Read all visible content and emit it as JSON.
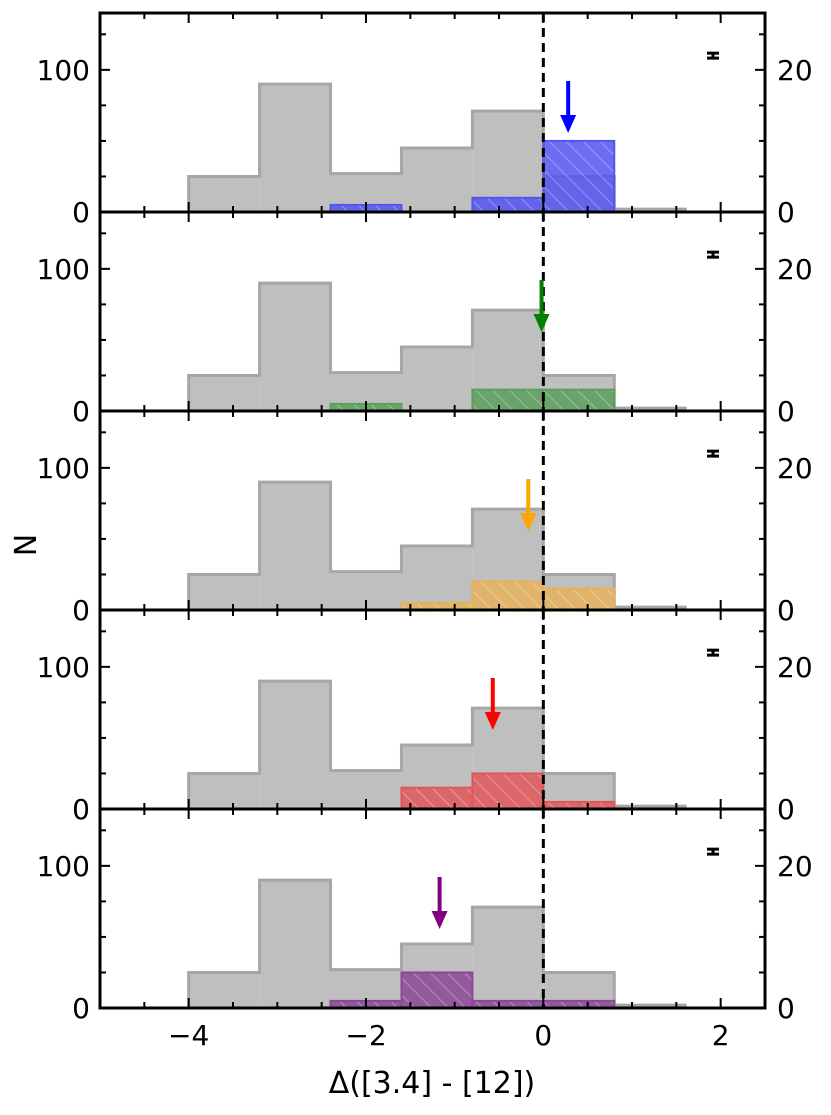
{
  "figure": {
    "xlabel": "Δ([3.4] - [12])",
    "ylabel": "N"
  },
  "chart_data": {
    "type": "histogram-stack",
    "shared_x": {
      "xlabel": "Δ([3.4] - [12])",
      "xlim": [
        -5,
        2.5
      ],
      "major_ticks": [
        -4,
        -2,
        0,
        2
      ],
      "major_tick_labels": [
        "−4",
        "−2",
        "0",
        "2"
      ],
      "minor_step": 0.5
    },
    "ylabel": "N",
    "left_axis": {
      "ylim": [
        0,
        140
      ],
      "ticks": [
        0,
        100
      ],
      "tick_labels": [
        "0",
        "100"
      ]
    },
    "right_axis": {
      "ylim": [
        0,
        28
      ],
      "ticks": [
        0,
        20
      ],
      "tick_labels": [
        "0",
        "20"
      ]
    },
    "reference_line_x": 0,
    "background_histogram": {
      "color": "#bfbfbf",
      "edge_color": "#a6a6a6",
      "bin_edges": [
        -4.0,
        -3.2,
        -2.4,
        -1.6,
        -0.8,
        0.0,
        0.8,
        1.6
      ],
      "counts": [
        25,
        90,
        27,
        45,
        71,
        25,
        2
      ]
    },
    "panels": [
      {
        "color": "#5454f2",
        "arrow_color": "#0000ff",
        "arrow_x": 0.28,
        "bin_edges": [
          -2.4,
          -1.6,
          -0.8,
          0.0,
          0.8
        ],
        "counts": [
          1,
          0,
          2,
          10
        ],
        "error_bar": [
          -1,
          1
        ]
      },
      {
        "color": "#5a9f5a",
        "arrow_color": "#007f00",
        "arrow_x": -0.02,
        "bin_edges": [
          -2.4,
          -1.6,
          -0.8,
          0.0,
          0.8
        ],
        "counts": [
          1,
          0,
          3,
          3
        ],
        "error_bar": [
          -1,
          1
        ]
      },
      {
        "color": "#e6b15c",
        "arrow_color": "#ffa500",
        "arrow_x": -0.17,
        "bin_edges": [
          -1.6,
          -0.8,
          0.0,
          0.8
        ],
        "counts": [
          1,
          4,
          3
        ],
        "error_bar": [
          -1,
          1
        ]
      },
      {
        "color": "#e0575a",
        "arrow_color": "#ff0000",
        "arrow_x": -0.57,
        "bin_edges": [
          -1.6,
          -0.8,
          0.0,
          0.8
        ],
        "counts": [
          3,
          5,
          1
        ],
        "error_bar": [
          -1,
          1
        ]
      },
      {
        "color": "#8b4797",
        "arrow_color": "#800080",
        "arrow_x": -1.17,
        "bin_edges": [
          -2.4,
          -1.6,
          -0.8,
          0.0,
          0.8
        ],
        "counts": [
          1,
          5,
          1,
          1
        ],
        "error_bar": [
          -1,
          1
        ]
      }
    ]
  }
}
